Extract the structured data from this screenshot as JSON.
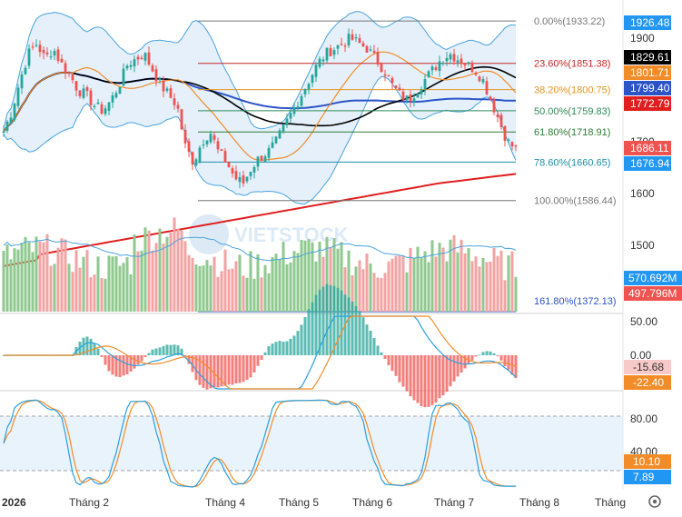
{
  "watermark": "VIETSTOCK",
  "colors": {
    "up": "#26a69a",
    "down": "#ef5350",
    "vol_up": "#8fc98f",
    "vol_down": "#f3a3a3",
    "ma20": "#f28c28",
    "ma50": "#000000",
    "ma100": "#2b54c8",
    "ma200": "#e01e1e",
    "bb_fill": "#cfe3f7",
    "bb_line": "#4aa3df",
    "macd": "#2b9fe0",
    "signal": "#f28c28",
    "stoch_k": "#2b9fe0",
    "stoch_d": "#f28c28",
    "stoch_band": "#dfeefb"
  },
  "chart_data": {
    "type": "candlestick",
    "x_axis": {
      "labels": [
        "2026",
        "Tháng 2",
        "Tháng 4",
        "Tháng 5",
        "Tháng 6",
        "Tháng 7",
        "Tháng 8",
        "Tháng"
      ]
    },
    "y_axis": {
      "ticks": [
        1900,
        1800,
        1700,
        1600,
        1500
      ],
      "range": [
        1450,
        1945
      ]
    },
    "price_series": {
      "close_path": [
        1720,
        1760,
        1820,
        1870,
        1890,
        1860,
        1880,
        1850,
        1830,
        1800,
        1790,
        1770,
        1760,
        1780,
        1810,
        1850,
        1860,
        1870,
        1840,
        1810,
        1790,
        1770,
        1690,
        1660,
        1700,
        1720,
        1680,
        1660,
        1630,
        1620,
        1650,
        1670,
        1680,
        1700,
        1730,
        1760,
        1790,
        1820,
        1850,
        1870,
        1880,
        1890,
        1900,
        1890,
        1880,
        1860,
        1840,
        1810,
        1790,
        1780,
        1800,
        1820,
        1840,
        1860,
        1870,
        1860,
        1850,
        1840,
        1820,
        1780,
        1740,
        1700,
        1686
      ],
      "fib_levels": [
        {
          "label": "0.00%(1933.22)",
          "value": 1933.22,
          "color": "#777777"
        },
        {
          "label": "23.60%(1851.38)",
          "value": 1851.38,
          "color": "#c62828"
        },
        {
          "label": "38.20%(1800.75)",
          "value": 1800.75,
          "color": "#e69520"
        },
        {
          "label": "50.00%(1759.83)",
          "value": 1759.83,
          "color": "#2e8b57"
        },
        {
          "label": "61.80%(1718.91)",
          "value": 1718.91,
          "color": "#2e7d32"
        },
        {
          "label": "78.60%(1660.65)",
          "value": 1660.65,
          "color": "#1f8fa8"
        },
        {
          "label": "100.00%(1586.44)",
          "value": 1586.44,
          "color": "#777777"
        },
        {
          "label": "161.80%(1372.13)",
          "value": 1372.13,
          "color": "#2b54c8"
        }
      ],
      "price_tags": [
        {
          "text": "1926.48",
          "value": 1926.48,
          "bg": "#2196f3"
        },
        {
          "text": "1829.61",
          "value": 1829.61,
          "bg": "#000000"
        },
        {
          "text": "1801.71",
          "value": 1801.71,
          "bg": "#f28c28"
        },
        {
          "text": "1799.40",
          "value": 1799.4,
          "bg": "#2b54c8"
        },
        {
          "text": "1772.79",
          "value": 1772.79,
          "bg": "#e01e1e"
        },
        {
          "text": "1686.11",
          "value": 1686.11,
          "bg": "#ef5350"
        },
        {
          "text": "1676.94",
          "value": 1676.94,
          "bg": "#2196f3"
        }
      ]
    },
    "volume": {
      "tags": [
        {
          "text": "570.692M",
          "bg": "#2196f3"
        },
        {
          "text": "497.796M",
          "bg": "#ef5350"
        }
      ]
    },
    "macd": {
      "ticks": [
        "50.00",
        "0.00"
      ],
      "tags": [
        {
          "text": "-15.68",
          "bg": "#f8c9c9",
          "fg": "#333333"
        },
        {
          "text": "-22.40",
          "bg": "#f28c28",
          "fg": "#ffffff"
        }
      ]
    },
    "stochastic": {
      "ticks": [
        "80.00",
        "40.00"
      ],
      "tags": [
        {
          "text": "10.10",
          "bg": "#f28c28",
          "fg": "#ffffff"
        },
        {
          "text": "7.89",
          "bg": "#2196f3",
          "fg": "#ffffff"
        }
      ]
    }
  }
}
